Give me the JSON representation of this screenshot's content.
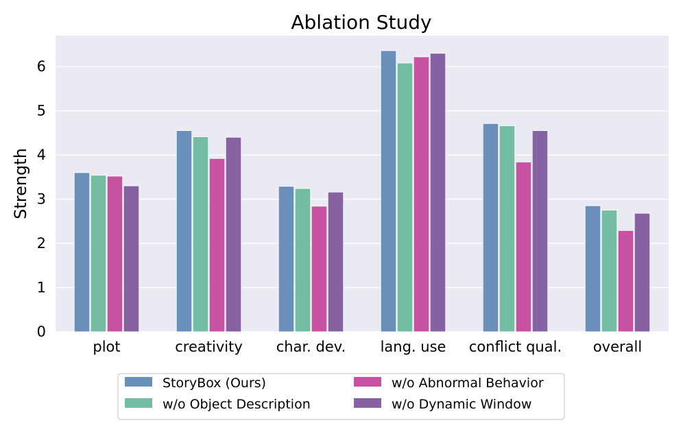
{
  "chart_data": {
    "type": "bar",
    "title": "Ablation Study",
    "xlabel": "",
    "ylabel": "Strength",
    "ylim": [
      0,
      6.7
    ],
    "yticks": [
      0,
      1,
      2,
      3,
      4,
      5,
      6
    ],
    "grid": true,
    "legend_position": "bottom-center",
    "categories": [
      "plot",
      "creativity",
      "char. dev.",
      "lang. use",
      "conflict qual.",
      "overall"
    ],
    "series": [
      {
        "name": "StoryBox (Ours)",
        "color": "#6a8fbb",
        "values": [
          3.6,
          4.55,
          3.29,
          6.36,
          4.71,
          2.85
        ]
      },
      {
        "name": "w/o Object Description",
        "color": "#74bda2",
        "values": [
          3.54,
          4.41,
          3.24,
          6.08,
          4.66,
          2.75
        ]
      },
      {
        "name": "w/o Abnormal Behavior",
        "color": "#c752a2",
        "values": [
          3.52,
          3.92,
          2.84,
          6.22,
          3.84,
          2.29
        ]
      },
      {
        "name": "w/o Dynamic Window",
        "color": "#8762a3",
        "values": [
          3.3,
          4.4,
          3.16,
          6.3,
          4.55,
          2.68
        ]
      }
    ]
  }
}
